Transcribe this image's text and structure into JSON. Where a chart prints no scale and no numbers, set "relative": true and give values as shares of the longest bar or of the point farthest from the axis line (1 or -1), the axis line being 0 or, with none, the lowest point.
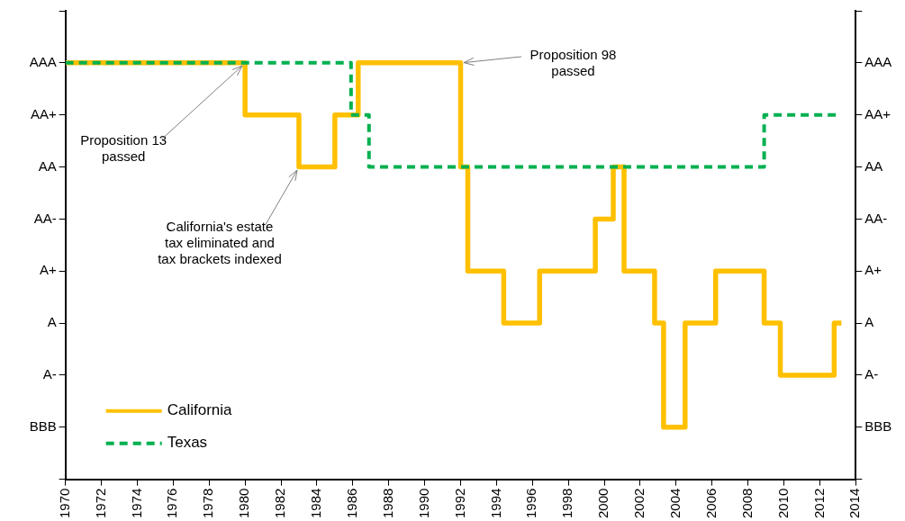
{
  "chart_data": {
    "type": "step",
    "relative": true,
    "xlim": [
      1970,
      2014
    ],
    "xticks": [
      1970,
      1972,
      1974,
      1976,
      1978,
      1980,
      1982,
      1984,
      1986,
      1988,
      1990,
      1992,
      1994,
      1996,
      1998,
      2000,
      2002,
      2004,
      2006,
      2008,
      2010,
      2012,
      2014
    ],
    "y_categories": [
      null,
      "AAA",
      "AA+",
      "AA",
      "AA-",
      "A+",
      "A",
      "A-",
      "BBB",
      null
    ],
    "y2_categories": [
      null,
      "AAA",
      "AA+",
      "AA",
      "AA-",
      "A+",
      "A",
      "A-",
      "BBB",
      null
    ],
    "legend": "bottom left",
    "series": [
      {
        "name": "California",
        "color": "#ffc000",
        "line_style": "solid",
        "x": [
          1970,
          1980,
          1983,
          1985,
          1986.3,
          1992,
          1992.4,
          1994.4,
          1996.4,
          1999.5,
          2000.5,
          2001.1,
          2002.8,
          2003.3,
          2004.5,
          2006.2,
          2008.9,
          2009.8,
          2012.8,
          2013.2
        ],
        "values": [
          1,
          0.875,
          0.75,
          0.875,
          1,
          0.75,
          0.5,
          0.375,
          0.5,
          0.625,
          0.75,
          0.5,
          0.375,
          0.125,
          0.375,
          0.5,
          0.375,
          0.25,
          0.375,
          0.375
        ]
      },
      {
        "name": "Texas",
        "color": "#00b050",
        "line_style": "dashed",
        "x": [
          1970,
          1985.9,
          1986.9,
          2008.9,
          2013
        ],
        "values": [
          1,
          0.875,
          0.75,
          0.875,
          0.875
        ]
      }
    ],
    "annotations": [
      {
        "text": "Proposition 13\npassed",
        "x": 1980,
        "y": 1
      },
      {
        "text": "California's estate\ntax eliminated and\ntax brackets indexed",
        "x": 1983,
        "y": 0.75
      },
      {
        "text": "Proposition 98\npassed",
        "x": 1992,
        "y": 1
      }
    ]
  }
}
